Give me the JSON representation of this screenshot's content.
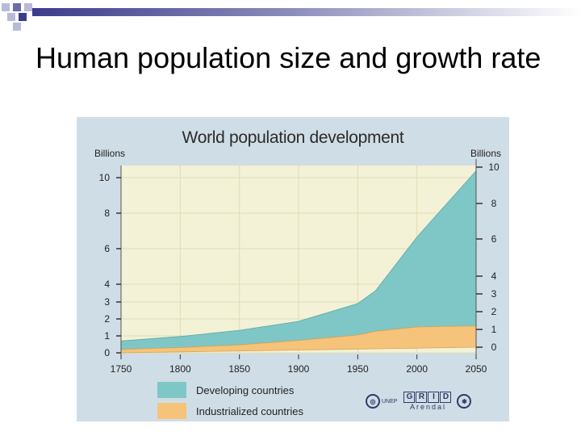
{
  "slide": {
    "title": "Human population size and growth rate"
  },
  "figure": {
    "title": "World population development",
    "y_unit_left": "Billions",
    "y_unit_right": "Billions",
    "legend": [
      {
        "label": "Developing countries",
        "color": "#7fc6c6"
      },
      {
        "label": "Industrialized countries",
        "color": "#f5c37a"
      }
    ],
    "logos": {
      "unep": "UNEP",
      "grid": [
        "G",
        "R",
        "I",
        "D"
      ],
      "grid_sub": "Arendal"
    }
  },
  "chart_data": {
    "type": "area",
    "x": [
      1750,
      1800,
      1850,
      1900,
      1950,
      1965,
      2000,
      2050
    ],
    "x_ticks": [
      "1750",
      "1800",
      "1850",
      "1900",
      "1950",
      "2000",
      "2050"
    ],
    "y_ticks_left": [
      "0",
      "1",
      "2",
      "3",
      "4",
      "6",
      "8",
      "10"
    ],
    "y_ticks_right": [
      "0",
      "1",
      "2",
      "3",
      "4",
      "6",
      "8",
      "10"
    ],
    "ylim": [
      0,
      10
    ],
    "stacked": true,
    "series": [
      {
        "name": "Industrialized countries",
        "color": "#f5c37a",
        "values": [
          0.2,
          0.25,
          0.35,
          0.55,
          0.8,
          1.0,
          1.2,
          1.2
        ]
      },
      {
        "name": "Developing countries",
        "color": "#7fc6c6",
        "values": [
          0.5,
          0.65,
          0.85,
          1.1,
          1.8,
          2.3,
          5.0,
          8.6
        ]
      }
    ],
    "grid": true
  }
}
